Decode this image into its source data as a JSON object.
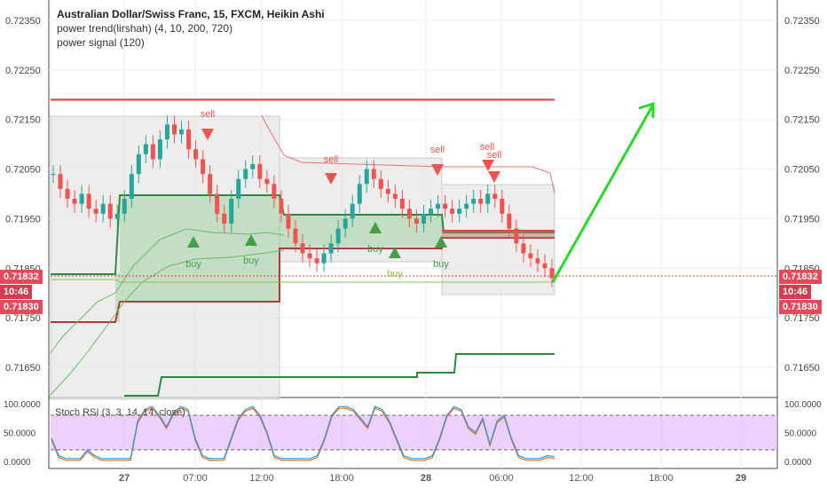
{
  "header": {
    "title": "Australian Dollar/Swiss Franc, 15, FXCM, Heikin Ashi",
    "indicator1": "power trend(lirshah) (4, 10, 200, 720)",
    "indicator2": "power signal (120)"
  },
  "price_axis": {
    "ticks": [
      "0.72350",
      "0.72250",
      "0.72150",
      "0.72050",
      "0.71950",
      "0.71850",
      "0.71750",
      "0.71650"
    ],
    "last_price": "0.71832",
    "countdown": "10:46",
    "second_price": "0.71830"
  },
  "time_axis": {
    "labels": [
      "27",
      "07:00",
      "12:00",
      "18:00",
      "28",
      "06:00",
      "12:00",
      "18:00",
      "29"
    ]
  },
  "rsi": {
    "label": "Stoch RSI (3, 3, 14, 14, close)",
    "ticks": [
      "100.0000",
      "50.0000",
      "0.0000"
    ]
  },
  "signals": {
    "sell": "sell",
    "buy": "buy"
  },
  "colors": {
    "up": "#26a69a",
    "down": "#ef5350",
    "band_green": "#2e8b3d",
    "band_red": "#e53935",
    "arrow": "#22dd22",
    "rsi_fill": "#e0b3ff",
    "k_line": "#2196f3",
    "d_line": "#ff6d00"
  },
  "chart_data": {
    "type": "candlestick",
    "title": "Australian Dollar/Swiss Franc, 15, FXCM, Heikin Ashi",
    "y_range": [
      0.716,
      0.724
    ],
    "ohlc_close_path": [
      0.7204,
      0.7201,
      0.7199,
      0.7198,
      0.72,
      0.7197,
      0.7196,
      0.7198,
      0.7195,
      0.7196,
      0.7199,
      0.7204,
      0.7208,
      0.721,
      0.7207,
      0.7211,
      0.7214,
      0.7212,
      0.7213,
      0.7209,
      0.7207,
      0.7204,
      0.72,
      0.7196,
      0.7194,
      0.7199,
      0.7203,
      0.7205,
      0.7206,
      0.7203,
      0.7202,
      0.7199,
      0.7196,
      0.7193,
      0.719,
      0.7188,
      0.7187,
      0.7186,
      0.7188,
      0.719,
      0.7193,
      0.7195,
      0.7198,
      0.7202,
      0.7205,
      0.7203,
      0.7201,
      0.72,
      0.7199,
      0.7197,
      0.7195,
      0.7194,
      0.7196,
      0.7197,
      0.7198,
      0.7197,
      0.7196,
      0.7197,
      0.7198,
      0.7199,
      0.7198,
      0.72,
      0.7199,
      0.7196,
      0.7193,
      0.719,
      0.7188,
      0.7187,
      0.7186,
      0.7185,
      0.7183
    ],
    "last_price": 0.71832,
    "resistance_line": 0.7219,
    "stoch_rsi": {
      "range": [
        0,
        100
      ],
      "bands": [
        20,
        80
      ]
    }
  }
}
